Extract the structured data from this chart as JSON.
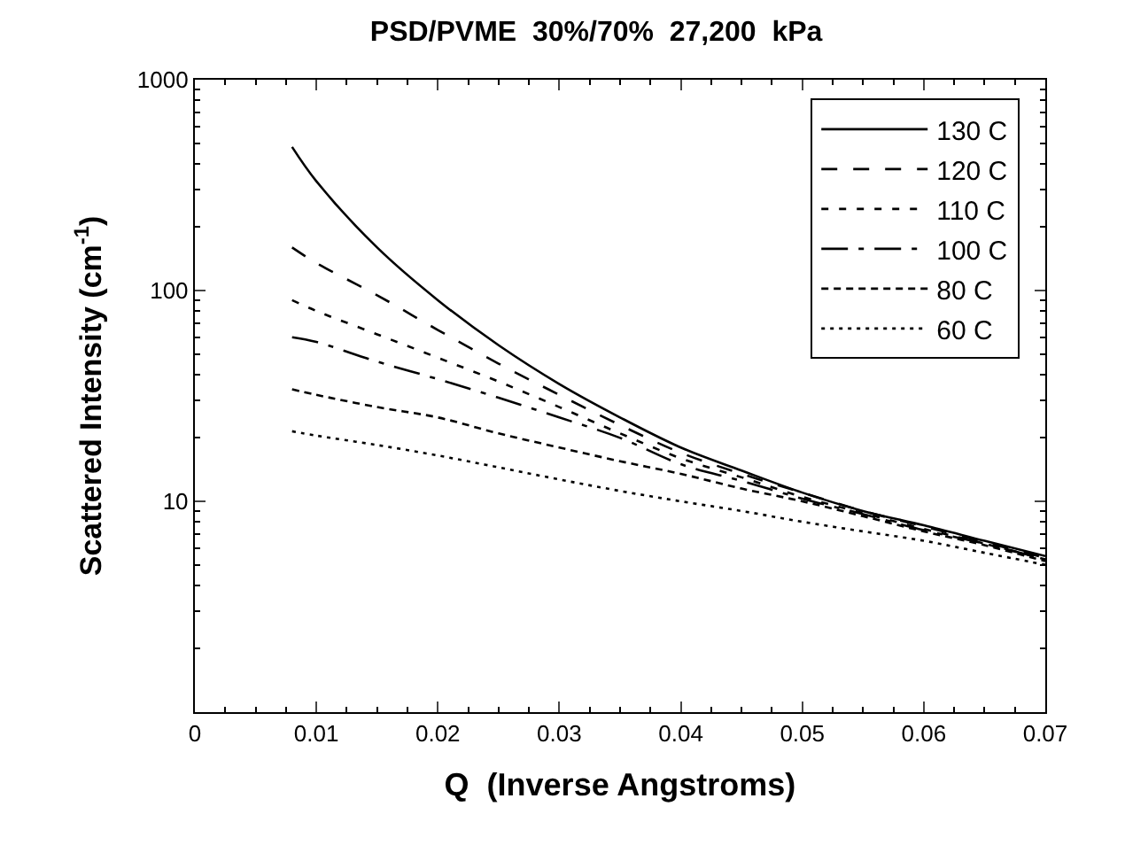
{
  "chart_data": {
    "type": "line",
    "title": "PSD/PVME  30%/70%  27,200  kPa",
    "xlabel": "Q  (Inverse Angstroms)",
    "ylabel": "Scattered Intensity (cm$^{-1}$)",
    "x": [
      0.008,
      0.01,
      0.015,
      0.02,
      0.025,
      0.03,
      0.035,
      0.04,
      0.045,
      0.05,
      0.055,
      0.06,
      0.065,
      0.07
    ],
    "series": [
      {
        "name": "130 C",
        "color": "#000000",
        "line_style": "solid",
        "values": [
          480,
          330,
          160,
          90,
          55,
          36,
          25,
          18,
          14,
          11,
          9,
          7.7,
          6.5,
          5.5
        ]
      },
      {
        "name": "120 C",
        "color": "#000000",
        "line_style": "dashed",
        "values": [
          160,
          135,
          95,
          65,
          45,
          32,
          23,
          17,
          13.5,
          11,
          9,
          7.6,
          6.4,
          5.4
        ]
      },
      {
        "name": "110 C",
        "color": "#000000",
        "line_style": "dotted",
        "values": [
          90,
          80,
          62,
          48,
          37,
          28,
          21,
          16,
          13,
          10.5,
          8.8,
          7.4,
          6.3,
          5.3
        ]
      },
      {
        "name": "100 C",
        "color": "#000000",
        "line_style": "dashdot",
        "values": [
          60,
          57,
          46,
          38,
          31,
          25,
          20,
          15,
          12.5,
          10.3,
          8.7,
          7.3,
          6.3,
          5.3
        ]
      },
      {
        "name": "80 C",
        "color": "#000000",
        "line_style": "dashed",
        "values": [
          34,
          32,
          28,
          25,
          21,
          18,
          15.5,
          13.5,
          11.5,
          10,
          8.5,
          7.2,
          6.2,
          5.2
        ]
      },
      {
        "name": "60 C",
        "color": "#000000",
        "line_style": "dotted",
        "values": [
          21.5,
          20.5,
          18.5,
          16.5,
          14.5,
          12.7,
          11.2,
          10,
          9,
          8,
          7.2,
          6.5,
          5.7,
          5.0
        ]
      }
    ],
    "log": "y",
    "xlim": [
      0,
      0.07
    ],
    "ylim": [
      1,
      1000
    ],
    "xticks": [
      0,
      0.01,
      0.02,
      0.03,
      0.04,
      0.05,
      0.06,
      0.07
    ],
    "yticks": [
      10,
      100,
      1000
    ],
    "legend": "top right"
  }
}
